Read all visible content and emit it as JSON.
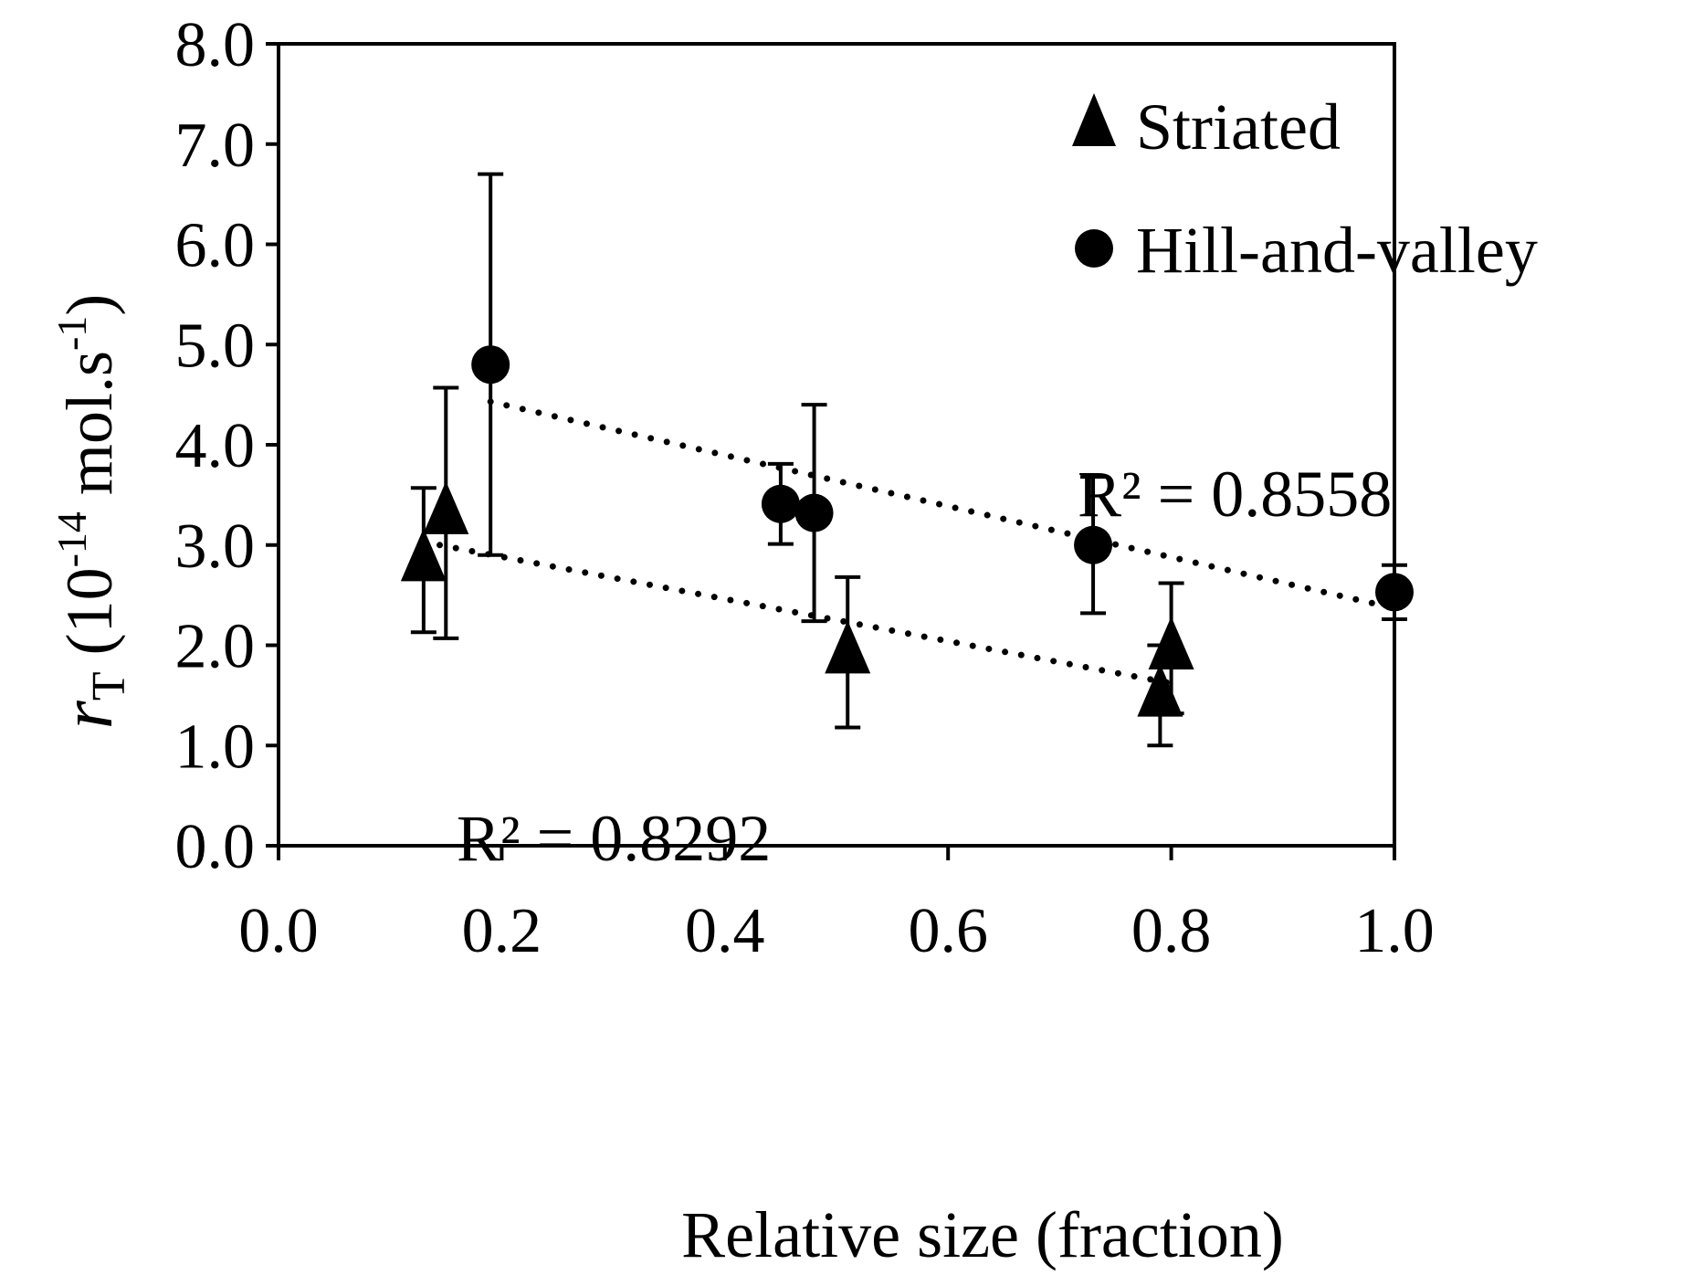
{
  "chart_data": {
    "type": "scatter",
    "title": "",
    "xlabel": "Relative size (fraction)",
    "ylabel": {
      "var": "r",
      "sub": "T",
      "open": " (10",
      "exp1": "-14",
      "mid": " mol.s",
      "exp2": "-1",
      "close": ")"
    },
    "xlim": [
      0.0,
      1.0
    ],
    "ylim": [
      0.0,
      8.0
    ],
    "xticks": [
      "0.0",
      "0.2",
      "0.4",
      "0.6",
      "0.8",
      "1.0"
    ],
    "yticks": [
      "0.0",
      "1.0",
      "2.0",
      "3.0",
      "4.0",
      "5.0",
      "6.0",
      "7.0",
      "8.0"
    ],
    "grid": false,
    "legend_position": "top-right",
    "series": [
      {
        "name": "Striated",
        "marker": "triangle",
        "color": "#000000",
        "points": [
          {
            "x": 0.13,
            "y": 2.85,
            "err": 0.72
          },
          {
            "x": 0.15,
            "y": 3.32,
            "err": 1.25
          },
          {
            "x": 0.51,
            "y": 1.93,
            "err": 0.75
          },
          {
            "x": 0.79,
            "y": 1.5,
            "err": 0.5
          },
          {
            "x": 0.8,
            "y": 1.97,
            "err": 0.65
          }
        ],
        "trendline": {
          "x": [
            0.13,
            0.8
          ],
          "y": [
            3.03,
            1.62
          ],
          "style": "dotted"
        },
        "r2_label": "R² = 0.8292"
      },
      {
        "name": "Hill-and-valley",
        "marker": "circle",
        "color": "#000000",
        "points": [
          {
            "x": 0.19,
            "y": 4.8,
            "err": 1.9
          },
          {
            "x": 0.45,
            "y": 3.41,
            "err": 0.4
          },
          {
            "x": 0.48,
            "y": 3.32,
            "err": 1.08
          },
          {
            "x": 0.73,
            "y": 3.0,
            "err": 0.68
          },
          {
            "x": 1.0,
            "y": 2.53,
            "err": 0.27
          }
        ],
        "trendline": {
          "x": [
            0.19,
            1.0
          ],
          "y": [
            4.43,
            2.37
          ],
          "style": "dotted"
        },
        "r2_label": "R² = 0.8558"
      }
    ]
  }
}
